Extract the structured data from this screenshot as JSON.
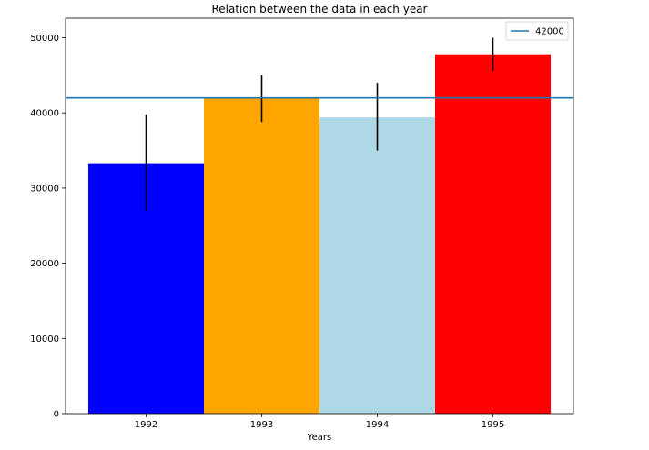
{
  "chart_data": {
    "type": "bar",
    "title": "Relation between the data in each year",
    "xlabel": "Years",
    "ylabel": "",
    "categories": [
      "1992",
      "1993",
      "1994",
      "1995"
    ],
    "values": [
      33300,
      42000,
      39400,
      47800
    ],
    "errors": [
      [
        27000,
        39800
      ],
      [
        38800,
        45000
      ],
      [
        35000,
        44000
      ],
      [
        45600,
        50000
      ]
    ],
    "bar_colors": [
      "#0000ff",
      "#ffa500",
      "#add8e6",
      "#ff0000"
    ],
    "ylim": [
      0,
      52600
    ],
    "yticks": [
      0,
      10000,
      20000,
      30000,
      40000,
      50000
    ],
    "yticklabels": [
      "0",
      "10000",
      "20000",
      "30000",
      "40000",
      "50000"
    ],
    "reference_line": {
      "value": 42000,
      "label": "42000",
      "color": "#1f77b4"
    },
    "legend_placement": "top-right",
    "grid": false
  }
}
